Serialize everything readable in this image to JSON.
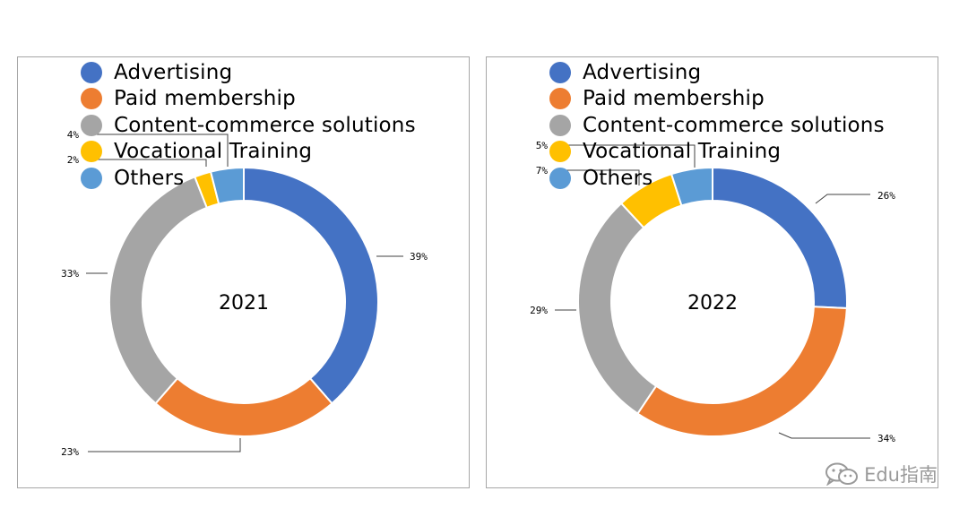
{
  "chart_data": [
    {
      "type": "pie",
      "center_label": "2021",
      "categories": [
        "Advertising",
        "Paid membership",
        "Content-commerce solutions",
        "Vocational Training",
        "Others"
      ],
      "values": [
        39,
        23,
        33,
        2,
        4
      ],
      "value_labels": [
        "39%",
        "23%",
        "33%",
        "2%",
        "4%"
      ],
      "colors": [
        "#4472C4",
        "#ED7D31",
        "#A5A5A5",
        "#FFC000",
        "#5B9BD5"
      ],
      "legend_position": "top-left"
    },
    {
      "type": "pie",
      "center_label": "2022",
      "categories": [
        "Advertising",
        "Paid membership",
        "Content-commerce solutions",
        "Vocational Training",
        "Others"
      ],
      "values": [
        26,
        34,
        29,
        7,
        5
      ],
      "value_labels": [
        "26%",
        "34%",
        "29%",
        "7%",
        "5%"
      ],
      "colors": [
        "#4472C4",
        "#ED7D31",
        "#A5A5A5",
        "#FFC000",
        "#5B9BD5"
      ],
      "legend_position": "top-left"
    }
  ],
  "watermark": {
    "text": "Edu指南",
    "icon": "wechat-icon",
    "color": "#9a9a9a"
  }
}
